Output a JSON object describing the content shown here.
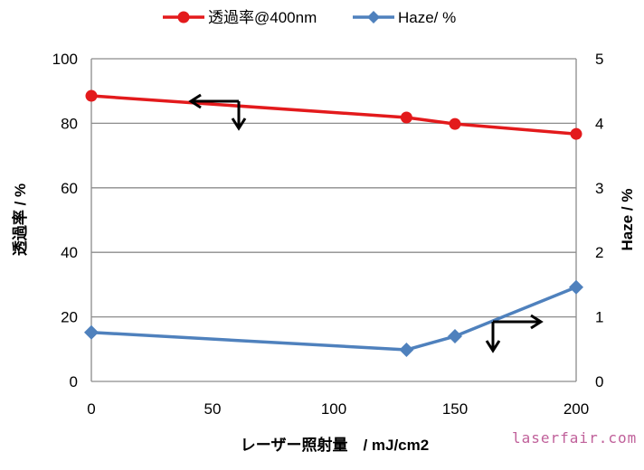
{
  "chart_data": {
    "type": "line",
    "x": [
      0,
      130,
      150,
      200
    ],
    "xlabel": "レーザー照射量　/ mJ/cm2",
    "xlim": [
      0,
      200
    ],
    "xticks": [
      0,
      50,
      100,
      150,
      200
    ],
    "ylabel": "透過率 / %",
    "ylim": [
      0,
      100
    ],
    "yticks": [
      0,
      20,
      40,
      60,
      80,
      100
    ],
    "y2label": "Haze / %",
    "y2lim": [
      0,
      5
    ],
    "y2ticks": [
      0,
      1,
      2,
      3,
      4,
      5
    ],
    "grid": "horizontal",
    "legend_position": "top",
    "series": [
      {
        "name": "透過率@400nm",
        "axis": "left",
        "color": "#e31a1c",
        "marker": "circle",
        "values": [
          88.5,
          81.8,
          79.8,
          76.7
        ]
      },
      {
        "name": "Haze/ %",
        "axis": "right",
        "color": "#4f81bd",
        "marker": "diamond",
        "values": [
          0.76,
          0.49,
          0.7,
          1.46
        ]
      }
    ]
  },
  "watermark": "laserfair.com"
}
